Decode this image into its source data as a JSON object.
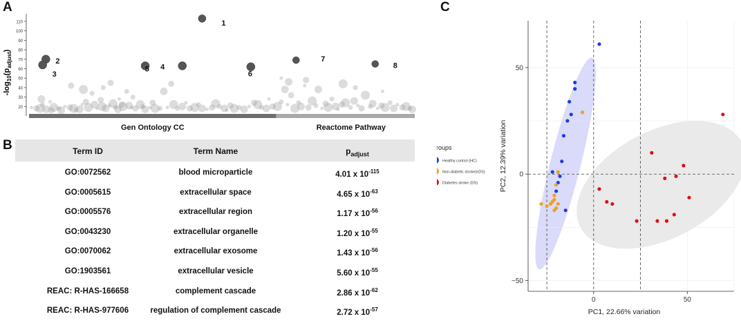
{
  "panels": {
    "a": "A",
    "b": "B",
    "c": "C"
  },
  "chart_data": [
    {
      "type": "scatter",
      "panel": "A",
      "ylabel": "-log10(padjust)",
      "ylim": [
        10,
        118
      ],
      "yticks": [
        20,
        30,
        40,
        50,
        60,
        70,
        80,
        90,
        100,
        110
      ],
      "sources": [
        {
          "name": "Gen Ontology CC",
          "x_start": 0,
          "x_end": 1.0
        },
        {
          "name": "Reactome Pathway",
          "x_start": 1.0,
          "x_end": 1.56
        }
      ],
      "highlighted": [
        {
          "label": "1",
          "x": 0.7,
          "y": 113,
          "size": 9
        },
        {
          "label": "2",
          "x": 0.068,
          "y": 70,
          "size": 10
        },
        {
          "label": "3",
          "x": 0.055,
          "y": 64,
          "size": 10
        },
        {
          "label": "4",
          "x": 0.47,
          "y": 63,
          "size": 10
        },
        {
          "label": "5",
          "x": 0.62,
          "y": 63,
          "size": 10
        },
        {
          "label": "6",
          "x": 0.897,
          "y": 62,
          "size": 10
        },
        {
          "label": "7",
          "x": 1.08,
          "y": 69,
          "size": 8
        },
        {
          "label": "8",
          "x": 1.4,
          "y": 65,
          "size": 8
        }
      ],
      "background_points": [
        [
          0.01,
          19
        ],
        [
          0.03,
          18
        ],
        [
          0.045,
          18
        ],
        [
          0.055,
          22
        ],
        [
          0.07,
          17
        ],
        [
          0.085,
          25
        ],
        [
          0.09,
          16
        ],
        [
          0.1,
          19
        ],
        [
          0.12,
          18
        ],
        [
          0.13,
          16
        ],
        [
          0.145,
          20
        ],
        [
          0.165,
          19
        ],
        [
          0.18,
          18
        ],
        [
          0.19,
          16
        ],
        [
          0.205,
          17
        ],
        [
          0.215,
          22
        ],
        [
          0.23,
          25
        ],
        [
          0.24,
          19
        ],
        [
          0.255,
          34
        ],
        [
          0.265,
          22
        ],
        [
          0.275,
          18
        ],
        [
          0.29,
          27
        ],
        [
          0.295,
          20
        ],
        [
          0.3,
          40
        ],
        [
          0.31,
          18
        ],
        [
          0.325,
          21
        ],
        [
          0.33,
          45
        ],
        [
          0.34,
          23
        ],
        [
          0.35,
          19
        ],
        [
          0.36,
          17
        ],
        [
          0.365,
          28
        ],
        [
          0.375,
          22
        ],
        [
          0.38,
          20
        ],
        [
          0.395,
          36
        ],
        [
          0.405,
          21
        ],
        [
          0.415,
          19
        ],
        [
          0.43,
          18
        ],
        [
          0.45,
          22
        ],
        [
          0.46,
          20
        ],
        [
          0.47,
          17
        ],
        [
          0.49,
          19
        ],
        [
          0.5,
          24
        ],
        [
          0.51,
          18
        ],
        [
          0.53,
          18
        ],
        [
          0.545,
          36
        ],
        [
          0.56,
          19
        ],
        [
          0.575,
          44
        ],
        [
          0.585,
          22
        ],
        [
          0.6,
          18
        ],
        [
          0.62,
          20
        ],
        [
          0.635,
          24
        ],
        [
          0.65,
          18
        ],
        [
          0.67,
          19
        ],
        [
          0.685,
          22
        ],
        [
          0.7,
          18
        ],
        [
          0.72,
          17
        ],
        [
          0.74,
          19
        ],
        [
          0.755,
          23
        ],
        [
          0.77,
          20
        ],
        [
          0.79,
          18
        ],
        [
          0.8,
          16
        ],
        [
          0.815,
          21
        ],
        [
          0.83,
          18
        ],
        [
          0.85,
          19
        ],
        [
          0.87,
          17
        ],
        [
          0.89,
          20
        ],
        [
          0.91,
          24
        ],
        [
          0.925,
          22
        ],
        [
          0.94,
          19
        ],
        [
          0.96,
          18
        ],
        [
          0.97,
          28
        ],
        [
          0.985,
          20
        ],
        [
          1.005,
          20
        ],
        [
          1.02,
          25
        ],
        [
          1.035,
          38
        ],
        [
          1.045,
          22
        ],
        [
          1.06,
          32
        ],
        [
          1.075,
          18
        ],
        [
          1.09,
          24
        ],
        [
          1.1,
          20
        ],
        [
          1.115,
          42
        ],
        [
          1.13,
          19
        ],
        [
          1.145,
          26
        ],
        [
          1.16,
          21
        ],
        [
          1.17,
          38
        ],
        [
          1.185,
          18
        ],
        [
          1.2,
          23
        ],
        [
          1.21,
          19
        ],
        [
          1.225,
          28
        ],
        [
          1.24,
          20
        ],
        [
          1.25,
          17
        ],
        [
          1.265,
          22
        ],
        [
          1.28,
          24
        ],
        [
          1.3,
          19
        ],
        [
          1.315,
          26
        ],
        [
          1.33,
          21
        ],
        [
          1.345,
          18
        ],
        [
          1.36,
          32
        ],
        [
          1.38,
          20
        ],
        [
          1.39,
          23
        ],
        [
          1.41,
          18
        ],
        [
          1.425,
          21
        ],
        [
          1.44,
          19
        ],
        [
          1.46,
          24
        ],
        [
          1.475,
          18
        ],
        [
          1.49,
          22
        ],
        [
          1.51,
          19
        ],
        [
          1.525,
          20
        ],
        [
          1.54,
          18
        ],
        [
          1.55,
          17
        ],
        [
          1.02,
          50
        ],
        [
          1.12,
          48
        ],
        [
          1.27,
          44
        ],
        [
          1.32,
          40
        ],
        [
          1.05,
          46
        ],
        [
          1.43,
          36
        ],
        [
          0.17,
          42
        ],
        [
          0.22,
          38
        ],
        [
          0.42,
          30
        ],
        [
          0.05,
          28
        ]
      ]
    },
    {
      "type": "scatter",
      "panel": "C",
      "xlabel": "PC1, 22.66% variation",
      "ylabel": "PC2, 12.39% variation",
      "xlim": [
        -35,
        75
      ],
      "ylim": [
        -55,
        72
      ],
      "xticks": [
        0,
        50
      ],
      "yticks": [
        -50,
        0,
        50
      ],
      "hlines": [
        0
      ],
      "vlines": [
        -25,
        0,
        25
      ],
      "legend_title": "Groups",
      "series": [
        {
          "name": "Healthy control (HC)",
          "color": "#1a3fe0",
          "points": [
            [
              3,
              61
            ],
            [
              -10,
              43
            ],
            [
              -10,
              40
            ],
            [
              -13,
              34
            ],
            [
              -12,
              28
            ],
            [
              -14,
              25
            ],
            [
              -16,
              18
            ],
            [
              -17,
              6
            ],
            [
              -22,
              1
            ],
            [
              -18,
              -1
            ],
            [
              -19,
              -4
            ],
            [
              -20,
              -8
            ],
            [
              -15,
              -17
            ]
          ]
        },
        {
          "name": "Non-diabetic stroke(nDS)",
          "color": "#f0a020",
          "points": [
            [
              -6,
              29
            ],
            [
              -19,
              1
            ],
            [
              -20,
              -5
            ],
            [
              -21,
              -10
            ],
            [
              -21,
              -12
            ],
            [
              -22,
              -13
            ],
            [
              -23,
              -14
            ],
            [
              -19,
              -14
            ],
            [
              -25,
              -15
            ],
            [
              -28,
              -14
            ],
            [
              -20,
              -16
            ],
            [
              -21,
              -17
            ]
          ]
        },
        {
          "name": "Diabetes stroke (DS)",
          "color": "#dd1111",
          "points": [
            [
              69,
              28
            ],
            [
              31,
              10
            ],
            [
              48,
              4
            ],
            [
              44,
              -1
            ],
            [
              38,
              -2
            ],
            [
              3,
              -7
            ],
            [
              51,
              -11
            ],
            [
              7,
              -13
            ],
            [
              10,
              -14
            ],
            [
              43,
              -19
            ],
            [
              23,
              -22
            ],
            [
              34,
              -22
            ],
            [
              39,
              -22
            ]
          ]
        }
      ]
    }
  ],
  "table": {
    "headers": {
      "term_id": "Term ID",
      "term_name": "Term Name",
      "p_base": "p",
      "p_sub": "adjust"
    },
    "rows": [
      {
        "id": "GO:0072562",
        "name": "blood microparticle",
        "p": "4.01 x 10",
        "exp": "-115"
      },
      {
        "id": "GO:0005615",
        "name": "extracellular space",
        "p": "4.65 x 10",
        "exp": "-63"
      },
      {
        "id": "GO:0005576",
        "name": "extracellular region",
        "p": "1.17 x 10",
        "exp": "-56"
      },
      {
        "id": "GO:0043230",
        "name": "extracellular organelle",
        "p": "1.20 x 10",
        "exp": "-55"
      },
      {
        "id": "GO:0070062",
        "name": "extracellular exosome",
        "p": "1.43 x 10",
        "exp": "-56"
      },
      {
        "id": "GO:1903561",
        "name": "extracellular vesicle",
        "p": "5.60 x 10",
        "exp": "-55"
      },
      {
        "id": "REAC: R-HAS-166658",
        "name": "complement cascade",
        "p": "2.86 x 10",
        "exp": "-62"
      },
      {
        "id": "REAC: R-HAS-977606",
        "name": "regulation of complement cascade",
        "p": "2.72 x 10",
        "exp": "-57"
      }
    ]
  }
}
